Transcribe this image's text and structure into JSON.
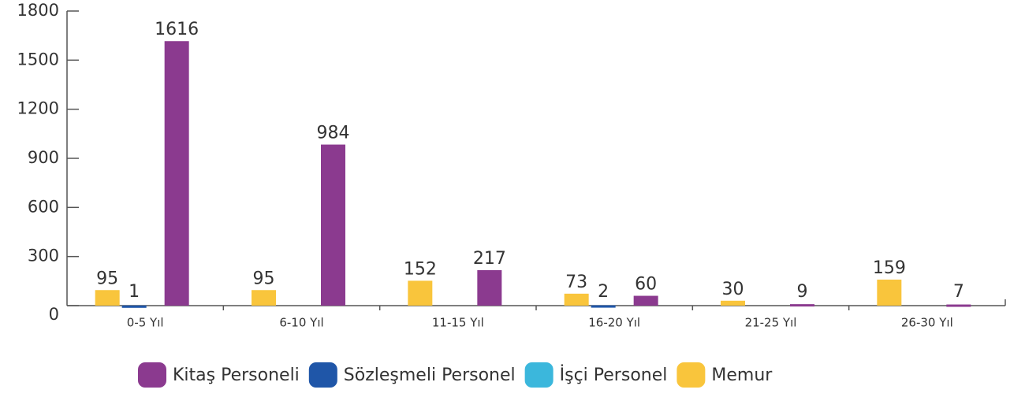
{
  "chart_data": {
    "type": "bar",
    "categories": [
      "0-5 Yıl",
      "6-10 Yıl",
      "11-15 Yıl",
      "16-20 Yıl",
      "21-25 Yıl",
      "26-30 Yıl"
    ],
    "series": [
      {
        "name": "Kitaş Personeli",
        "color": "#8b3a8f",
        "values": [
          1616,
          984,
          217,
          60,
          9,
          7
        ]
      },
      {
        "name": "Sözleşmeli Personel",
        "color": "#1f56a8",
        "values": [
          1,
          null,
          null,
          2,
          null,
          null
        ]
      },
      {
        "name": "İşçi Personel",
        "color": "#3bb7dc",
        "values": [
          null,
          null,
          null,
          null,
          null,
          null
        ]
      },
      {
        "name": "Memur",
        "color": "#f9c53c",
        "values": [
          95,
          95,
          152,
          73,
          30,
          159
        ]
      }
    ],
    "ylim": [
      0,
      1800
    ],
    "yticks": [
      0,
      300,
      600,
      900,
      1200,
      1500,
      1800
    ],
    "legend": "bottom"
  }
}
